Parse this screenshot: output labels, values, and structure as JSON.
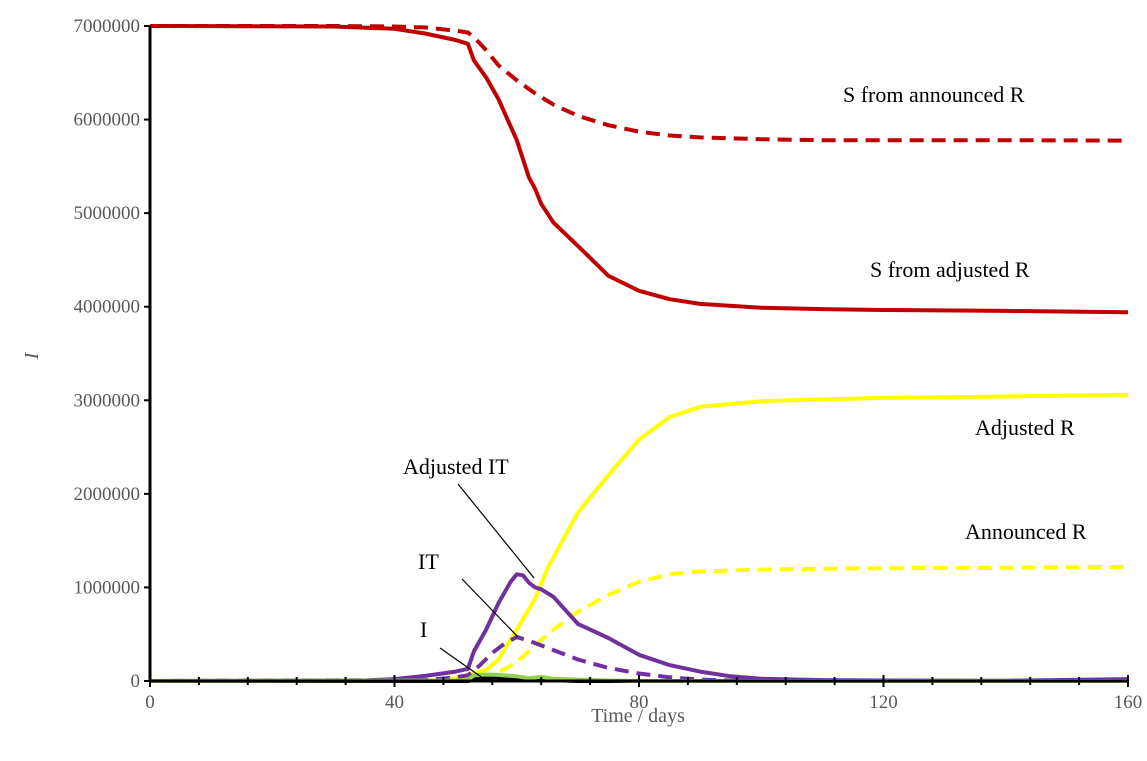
{
  "chart_data": {
    "type": "line",
    "xlabel": "Time / days",
    "ylabel": "I",
    "xlim": [
      0,
      160
    ],
    "ylim": [
      0,
      7000000
    ],
    "xticks": [
      "0",
      "40",
      "80",
      "120",
      "160"
    ],
    "yticks": [
      "0",
      "1000000",
      "2000000",
      "3000000",
      "4000000",
      "5000000",
      "6000000",
      "7000000"
    ],
    "grid": false,
    "legend": "none",
    "series": [
      {
        "name": "S from announced R",
        "color": "#c00000",
        "dash": true,
        "x": [
          0,
          30,
          40,
          45,
          50,
          52,
          53,
          55,
          57,
          60,
          63,
          66,
          70,
          75,
          80,
          85,
          90,
          100,
          110,
          120,
          140,
          160
        ],
        "y": [
          7000000,
          7000000,
          6995000,
          6985000,
          6950000,
          6930000,
          6880000,
          6740000,
          6580000,
          6420000,
          6280000,
          6160000,
          6040000,
          5940000,
          5870000,
          5830000,
          5810000,
          5790000,
          5780000,
          5780000,
          5780000,
          5775000
        ]
      },
      {
        "name": "S from adjusted R",
        "color": "#c00000",
        "dash": false,
        "x": [
          0,
          30,
          40,
          45,
          50,
          52,
          53,
          55,
          57,
          60,
          62,
          63,
          64,
          66,
          70,
          75,
          80,
          85,
          90,
          100,
          110,
          120,
          140,
          160
        ],
        "y": [
          7000000,
          6995000,
          6970000,
          6920000,
          6850000,
          6810000,
          6630000,
          6450000,
          6220000,
          5780000,
          5380000,
          5260000,
          5100000,
          4900000,
          4650000,
          4330000,
          4170000,
          4080000,
          4030000,
          3990000,
          3975000,
          3965000,
          3955000,
          3940000
        ]
      },
      {
        "name": "Adjusted R",
        "color": "#ffff00",
        "dash": false,
        "x": [
          0,
          45,
          50,
          55,
          57,
          60,
          63,
          65,
          70,
          75,
          80,
          85,
          90,
          100,
          110,
          120,
          140,
          160
        ],
        "y": [
          0,
          0,
          30000,
          120000,
          230000,
          550000,
          880000,
          1200000,
          1800000,
          2200000,
          2580000,
          2820000,
          2930000,
          2990000,
          3010000,
          3025000,
          3040000,
          3060000
        ]
      },
      {
        "name": "Announced R",
        "color": "#ffff00",
        "dash": true,
        "x": [
          0,
          50,
          55,
          57,
          60,
          63,
          65,
          70,
          75,
          80,
          85,
          90,
          100,
          110,
          120,
          140,
          160
        ],
        "y": [
          0,
          0,
          30000,
          90000,
          200000,
          380000,
          500000,
          740000,
          920000,
          1060000,
          1140000,
          1170000,
          1190000,
          1200000,
          1205000,
          1210000,
          1220000
        ]
      },
      {
        "name": "Adjusted IT",
        "color": "#7030a0",
        "dash": false,
        "x": [
          0,
          35,
          40,
          45,
          50,
          52,
          53,
          55,
          57,
          59,
          60,
          61,
          62,
          63,
          64,
          66,
          70,
          75,
          80,
          85,
          90,
          95,
          100,
          110,
          120,
          140,
          160
        ],
        "y": [
          0,
          5000,
          20000,
          55000,
          100000,
          130000,
          320000,
          550000,
          830000,
          1060000,
          1140000,
          1130000,
          1050000,
          1000000,
          980000,
          900000,
          610000,
          460000,
          280000,
          170000,
          100000,
          50000,
          25000,
          10000,
          5000,
          3000,
          20000
        ]
      },
      {
        "name": "IT",
        "color": "#7030a0",
        "dash": true,
        "x": [
          0,
          45,
          50,
          52,
          54,
          56,
          58,
          60,
          62,
          64,
          66,
          70,
          75,
          80,
          85,
          90,
          95,
          100,
          120,
          160
        ],
        "y": [
          0,
          10000,
          40000,
          60000,
          170000,
          300000,
          400000,
          470000,
          430000,
          380000,
          330000,
          230000,
          140000,
          80000,
          40000,
          15000,
          5000,
          2000,
          0,
          0
        ]
      },
      {
        "name": "I",
        "color": "#000000",
        "dash": false,
        "x": [
          0,
          52,
          54,
          56,
          58,
          60,
          62,
          64,
          66,
          70,
          160
        ],
        "y": [
          0,
          0,
          30000,
          40000,
          35000,
          30000,
          25000,
          15000,
          10000,
          0,
          0
        ]
      },
      {
        "name": "",
        "color": "#92d050",
        "dash": false,
        "x": [
          0,
          50,
          52,
          53,
          55,
          57,
          60,
          62,
          64,
          66,
          70,
          75,
          80,
          160
        ],
        "y": [
          0,
          5000,
          15000,
          60000,
          70000,
          65000,
          50000,
          30000,
          45000,
          25000,
          15000,
          5000,
          0,
          0
        ]
      }
    ],
    "annotations": [
      {
        "text": "S from announced R"
      },
      {
        "text": "S from adjusted R"
      },
      {
        "text": "Adjusted R"
      },
      {
        "text": "Announced R"
      },
      {
        "text": "Adjusted IT"
      },
      {
        "text": "IT"
      },
      {
        "text": "I"
      }
    ]
  }
}
